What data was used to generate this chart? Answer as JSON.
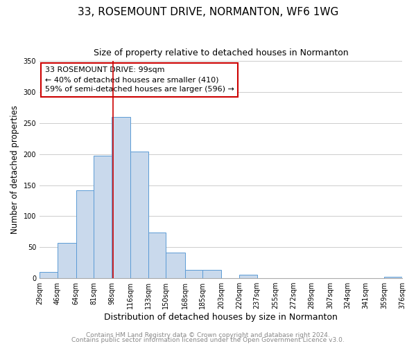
{
  "title": "33, ROSEMOUNT DRIVE, NORMANTON, WF6 1WG",
  "subtitle": "Size of property relative to detached houses in Normanton",
  "xlabel": "Distribution of detached houses by size in Normanton",
  "ylabel": "Number of detached properties",
  "bar_edges": [
    29,
    46,
    64,
    81,
    98,
    116,
    133,
    150,
    168,
    185,
    203,
    220,
    237,
    255,
    272,
    289,
    307,
    324,
    341,
    359,
    376
  ],
  "bar_heights": [
    10,
    57,
    142,
    198,
    260,
    204,
    74,
    41,
    13,
    14,
    0,
    6,
    0,
    0,
    0,
    0,
    0,
    0,
    0,
    2
  ],
  "bar_color": "#c9d9ec",
  "bar_edgecolor": "#5b9bd5",
  "tick_labels": [
    "29sqm",
    "46sqm",
    "64sqm",
    "81sqm",
    "98sqm",
    "116sqm",
    "133sqm",
    "150sqm",
    "168sqm",
    "185sqm",
    "203sqm",
    "220sqm",
    "237sqm",
    "255sqm",
    "272sqm",
    "289sqm",
    "307sqm",
    "324sqm",
    "341sqm",
    "359sqm",
    "376sqm"
  ],
  "ylim": [
    0,
    350
  ],
  "yticks": [
    0,
    50,
    100,
    150,
    200,
    250,
    300,
    350
  ],
  "property_line_x": 99,
  "property_line_color": "#cc0000",
  "annotation_line1": "33 ROSEMOUNT DRIVE: 99sqm",
  "annotation_line2": "← 40% of detached houses are smaller (410)",
  "annotation_line3": "59% of semi-detached houses are larger (596) →",
  "annotation_box_facecolor": "white",
  "annotation_box_edgecolor": "#cc0000",
  "footer_line1": "Contains HM Land Registry data © Crown copyright and database right 2024.",
  "footer_line2": "Contains public sector information licensed under the Open Government Licence v3.0.",
  "background_color": "white",
  "grid_color": "#cccccc",
  "title_fontsize": 11,
  "subtitle_fontsize": 9,
  "ylabel_fontsize": 8.5,
  "xlabel_fontsize": 9,
  "tick_fontsize": 7,
  "annotation_fontsize": 8,
  "footer_fontsize": 6.5
}
